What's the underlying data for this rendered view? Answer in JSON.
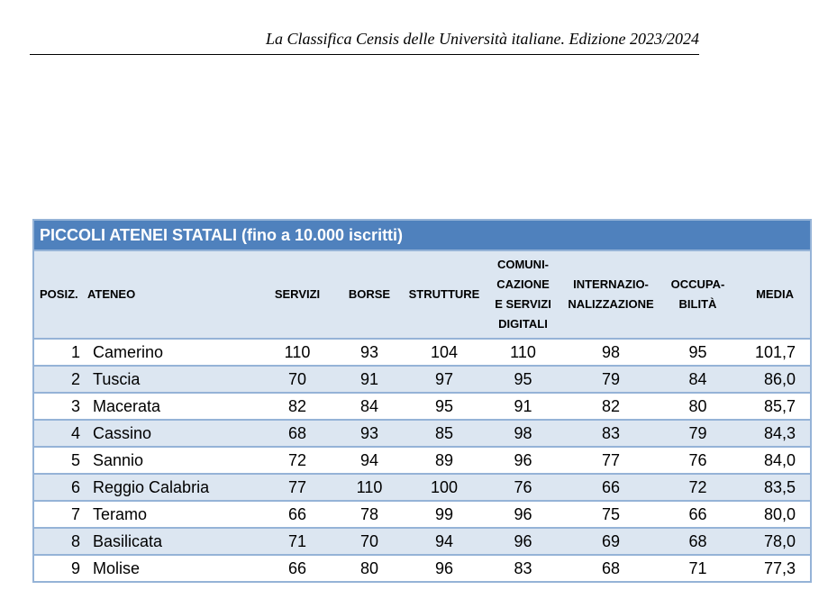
{
  "header": "La Classifica Censis delle Università italiane. Edizione 2023/2024",
  "table_title": "PICCOLI ATENEI STATALI (fino a 10.000 iscritti)",
  "columns": {
    "posiz": "POSIZ.",
    "ateneo": "ATENEO",
    "servizi": "SERVIZI",
    "borse": "BORSE",
    "strutture": "STRUTTURE",
    "comunicazione_l1": "COMUNI-",
    "comunicazione_l2": "CAZIONE",
    "comunicazione_l3": "E SERVIZI",
    "comunicazione_l4": "DIGITALI",
    "internaz_l1": "INTERNAZIO-",
    "internaz_l2": "NALIZZAZIONE",
    "occupa_l1": "OCCUPA-",
    "occupa_l2": "BILITÀ",
    "media": "MEDIA"
  },
  "rows": [
    {
      "pos": "1",
      "ateneo": "Camerino",
      "servizi": "110",
      "borse": "93",
      "strutture": "104",
      "comunicazione": "110",
      "internazionalizzazione": "98",
      "occupabilita": "95",
      "media": "101,7"
    },
    {
      "pos": "2",
      "ateneo": "Tuscia",
      "servizi": "70",
      "borse": "91",
      "strutture": "97",
      "comunicazione": "95",
      "internazionalizzazione": "79",
      "occupabilita": "84",
      "media": "86,0"
    },
    {
      "pos": "3",
      "ateneo": "Macerata",
      "servizi": "82",
      "borse": "84",
      "strutture": "95",
      "comunicazione": "91",
      "internazionalizzazione": "82",
      "occupabilita": "80",
      "media": "85,7"
    },
    {
      "pos": "4",
      "ateneo": "Cassino",
      "servizi": "68",
      "borse": "93",
      "strutture": "85",
      "comunicazione": "98",
      "internazionalizzazione": "83",
      "occupabilita": "79",
      "media": "84,3"
    },
    {
      "pos": "5",
      "ateneo": "Sannio",
      "servizi": "72",
      "borse": "94",
      "strutture": "89",
      "comunicazione": "96",
      "internazionalizzazione": "77",
      "occupabilita": "76",
      "media": "84,0"
    },
    {
      "pos": "6",
      "ateneo": "Reggio Calabria",
      "servizi": "77",
      "borse": "110",
      "strutture": "100",
      "comunicazione": "76",
      "internazionalizzazione": "66",
      "occupabilita": "72",
      "media": "83,5"
    },
    {
      "pos": "7",
      "ateneo": "Teramo",
      "servizi": "66",
      "borse": "78",
      "strutture": "99",
      "comunicazione": "96",
      "internazionalizzazione": "75",
      "occupabilita": "66",
      "media": "80,0"
    },
    {
      "pos": "8",
      "ateneo": "Basilicata",
      "servizi": "71",
      "borse": "70",
      "strutture": "94",
      "comunicazione": "96",
      "internazionalizzazione": "69",
      "occupabilita": "68",
      "media": "78,0"
    },
    {
      "pos": "9",
      "ateneo": "Molise",
      "servizi": "66",
      "borse": "80",
      "strutture": "96",
      "comunicazione": "83",
      "internazionalizzazione": "68",
      "occupabilita": "71",
      "media": "77,3"
    }
  ]
}
